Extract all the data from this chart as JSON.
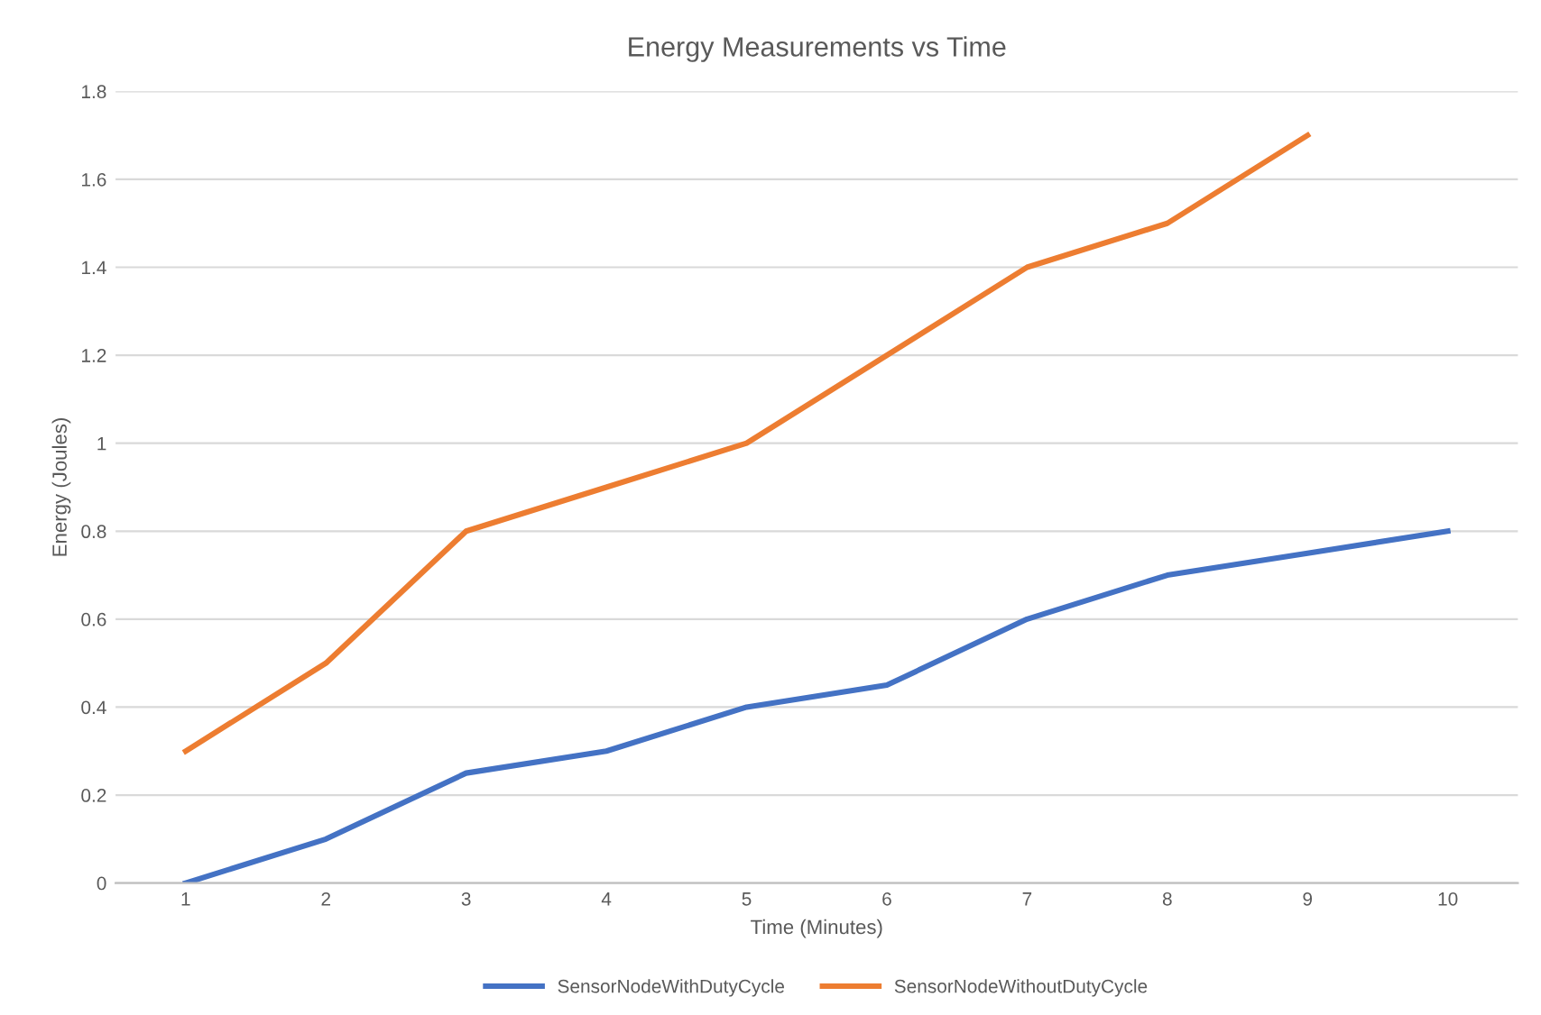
{
  "chart_data": {
    "type": "line",
    "title": "Energy Measurements vs Time",
    "xlabel": "Time (Minutes)",
    "ylabel": "Energy (Joules)",
    "categories": [
      "1",
      "2",
      "3",
      "4",
      "5",
      "6",
      "7",
      "8",
      "9",
      "10"
    ],
    "series": [
      {
        "name": "SensorNodeWithDutyCycle",
        "color": "#4472c4",
        "values": [
          0,
          0.1,
          0.25,
          0.3,
          0.4,
          0.45,
          0.6,
          0.7,
          0.75,
          0.8
        ]
      },
      {
        "name": "SensorNodeWithoutDutyCycle",
        "color": "#ed7d31",
        "values": [
          0.3,
          0.5,
          0.8,
          0.9,
          1.0,
          1.2,
          1.4,
          1.5,
          1.7,
          null
        ]
      }
    ],
    "ylim": [
      0,
      1.8
    ],
    "yticks": [
      0,
      0.2,
      0.4,
      0.6,
      0.8,
      1,
      1.2,
      1.4,
      1.6,
      1.8
    ],
    "grid": "y",
    "legend": "bottom",
    "marker": "none",
    "line_style": "solid"
  }
}
